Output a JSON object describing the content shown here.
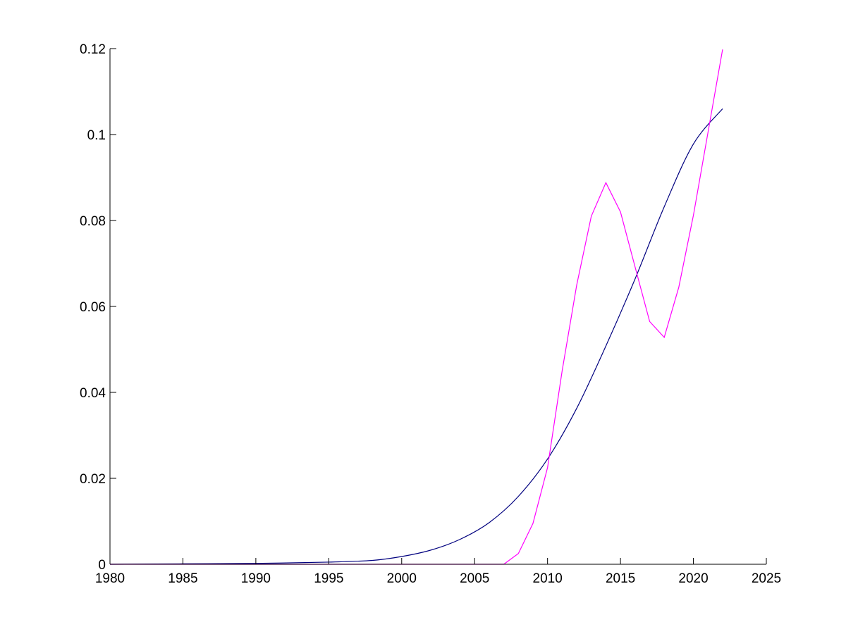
{
  "chart_data": {
    "type": "line",
    "title": "",
    "xlabel": "",
    "ylabel": "",
    "xlim": [
      1980,
      2025
    ],
    "ylim": [
      0,
      0.12
    ],
    "grid": false,
    "legend": "none",
    "x_ticks": [
      1980,
      1985,
      1990,
      1995,
      2000,
      2005,
      2010,
      2015,
      2020,
      2025
    ],
    "x_tick_labels": [
      "1980",
      "1985",
      "1990",
      "1995",
      "2000",
      "2005",
      "2010",
      "2015",
      "2020",
      "2025"
    ],
    "y_ticks": [
      0,
      0.02,
      0.04,
      0.06,
      0.08,
      0.1,
      0.12
    ],
    "y_tick_labels": [
      "0",
      "0.02",
      "0.04",
      "0.06",
      "0.08",
      "0.1",
      "0.12"
    ],
    "series": [
      {
        "color": "#00007f",
        "x": [
          1980,
          1985,
          1990,
          1995,
          1998,
          2000,
          2002,
          2004,
          2006,
          2008,
          2010,
          2012,
          2014,
          2016,
          2018,
          2020,
          2022
        ],
        "y": [
          0,
          0.0001,
          0.0002,
          0.0005,
          0.0009,
          0.0018,
          0.0033,
          0.0058,
          0.0097,
          0.0158,
          0.0245,
          0.0363,
          0.0508,
          0.0664,
          0.0832,
          0.0978,
          0.106
        ]
      },
      {
        "color": "#ff00ff",
        "x": [
          1980,
          2007,
          2008,
          2009,
          2010,
          2011,
          2012,
          2013,
          2014,
          2015,
          2016,
          2017,
          2018,
          2019,
          2020,
          2021,
          2022
        ],
        "y": [
          0,
          0,
          0.0025,
          0.0095,
          0.0225,
          0.045,
          0.065,
          0.081,
          0.0888,
          0.082,
          0.0692,
          0.0565,
          0.0528,
          0.0645,
          0.0812,
          0.1005,
          0.1198
        ]
      }
    ]
  }
}
